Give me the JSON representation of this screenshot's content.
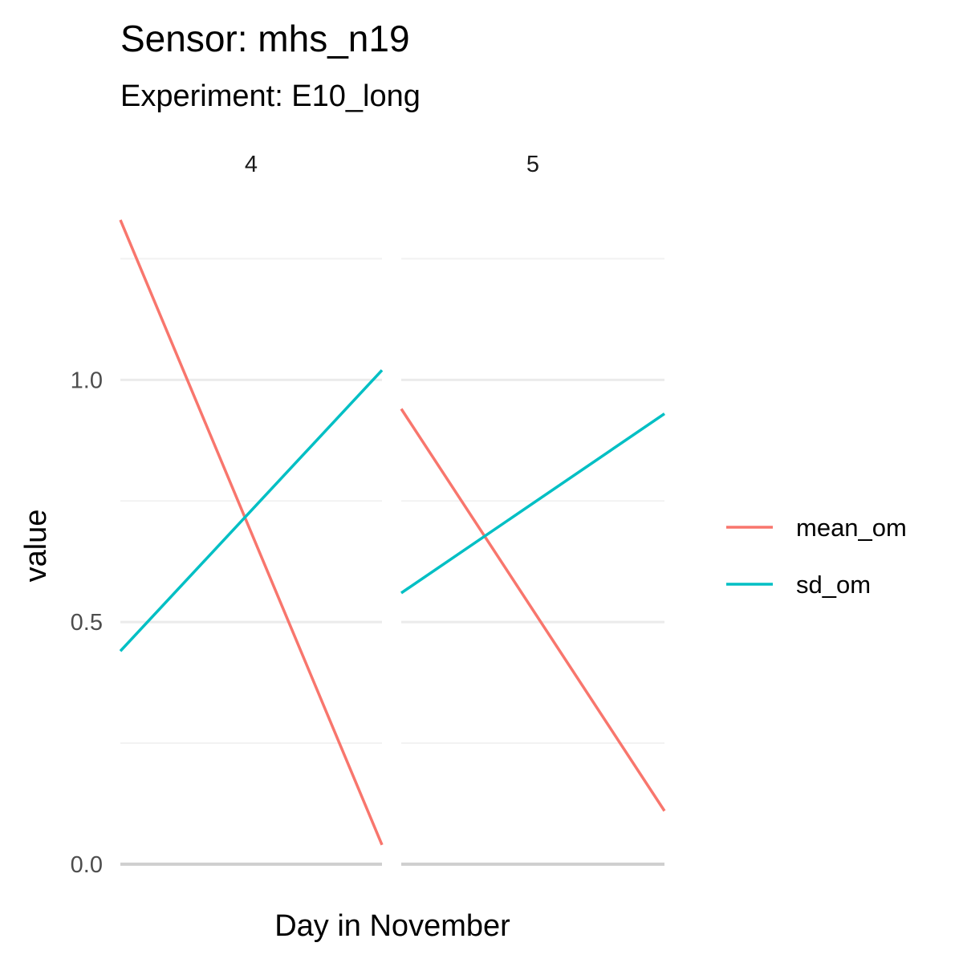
{
  "chart_data": {
    "type": "line",
    "title": "Sensor: mhs_n19",
    "subtitle": "Experiment: E10_long",
    "xlabel": "Day in November",
    "ylabel": "value",
    "ylim": [
      0,
      1.33
    ],
    "y_ticks": [
      {
        "value": 0.0,
        "label": "0.0"
      },
      {
        "value": 0.5,
        "label": "0.5"
      },
      {
        "value": 1.0,
        "label": "1.0"
      }
    ],
    "y_minor_gridlines": [
      0.25,
      0.75,
      1.25
    ],
    "grid": true,
    "legend_position": "right",
    "facet_variable": "Day in November",
    "facets": [
      {
        "label": "4",
        "series": [
          {
            "name": "mean_om",
            "x": [
              0,
              1
            ],
            "values": [
              1.33,
              0.04
            ]
          },
          {
            "name": "sd_om",
            "x": [
              0,
              1
            ],
            "values": [
              0.44,
              1.02
            ]
          }
        ]
      },
      {
        "label": "5",
        "series": [
          {
            "name": "mean_om",
            "x": [
              0,
              1
            ],
            "values": [
              0.94,
              0.11
            ]
          },
          {
            "name": "sd_om",
            "x": [
              0,
              1
            ],
            "values": [
              0.56,
              0.93
            ]
          }
        ]
      }
    ],
    "legend": [
      {
        "name": "mean_om",
        "color": "#F8766D"
      },
      {
        "name": "sd_om",
        "color": "#00BFC4"
      }
    ],
    "colors": {
      "mean_om": "#F8766D",
      "sd_om": "#00BFC4",
      "major_grid": "#EBEBEB",
      "minor_grid": "#F2F2F2",
      "baseline": "#CFCFCF"
    }
  }
}
